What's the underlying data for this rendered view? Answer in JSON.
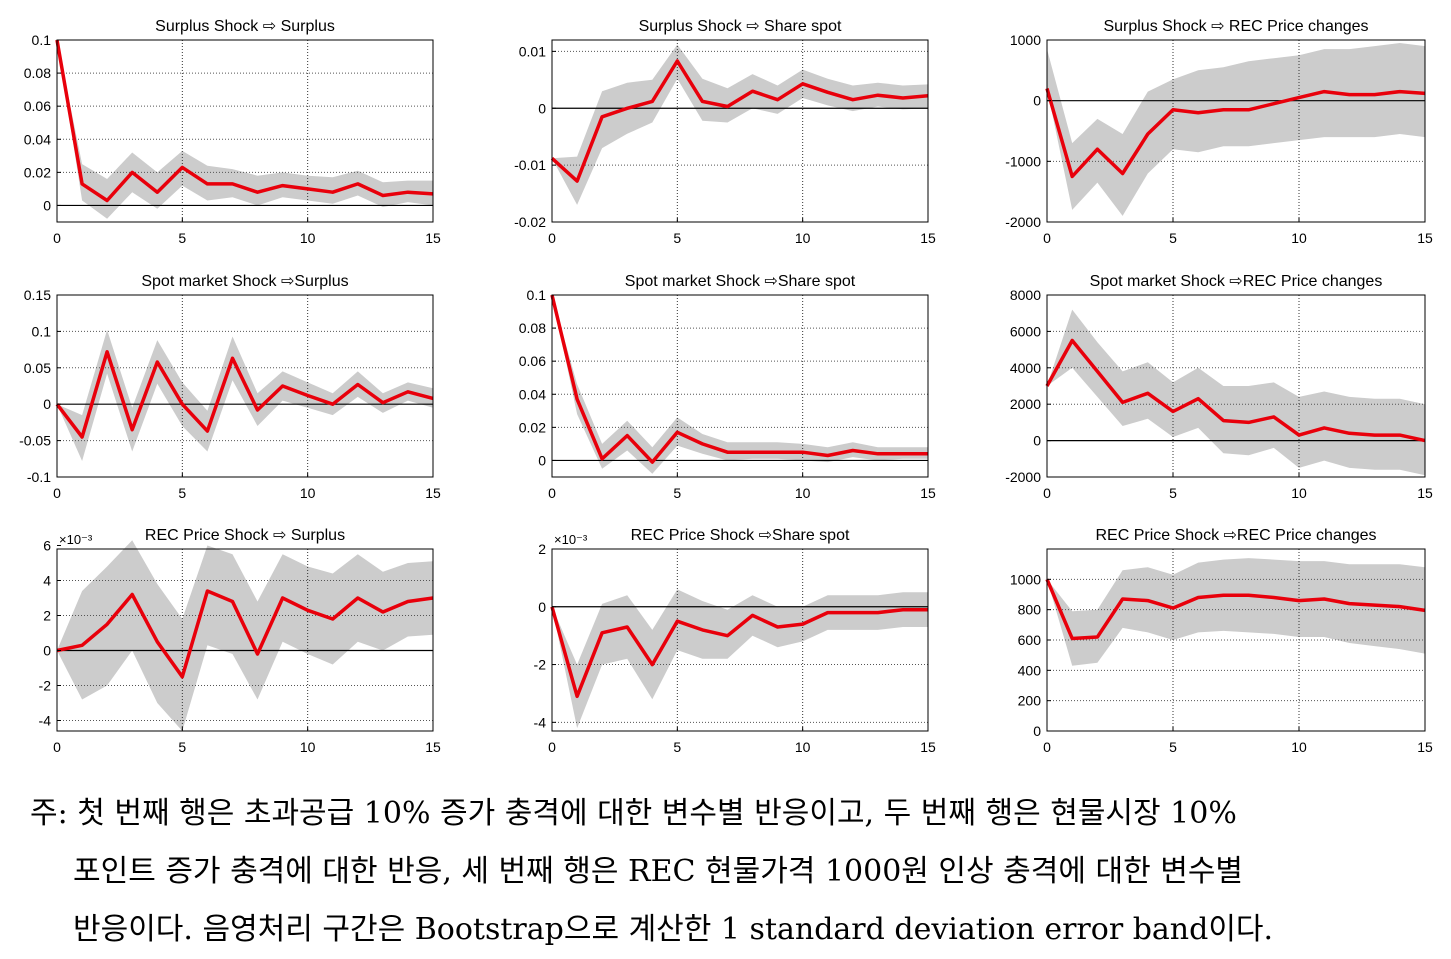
{
  "note": {
    "line1": "주: 첫 번째 행은 초과공급 10% 증가 충격에 대한 변수별 반응이고, 두 번째 행은 현물시장 10%",
    "line2": "포인트 증가 충격에 대한 반응, 세 번째 행은 REC 현물가격 1000원 인상 충격에 대한 변수별",
    "line3": "반응이다. 음영처리 구간은 Bootstrap으로 계산한 1 standard deviation error band이다."
  },
  "colors": {
    "response": "#e8000b",
    "band": "#cccccc"
  },
  "chart_data": [
    {
      "type": "line",
      "title": "Surplus Shock ⇨ Surplus",
      "xlim": [
        0,
        15
      ],
      "ylim": [
        -0.01,
        0.1
      ],
      "xticks": [
        0,
        5,
        10,
        15
      ],
      "yticks": [
        0,
        0.02,
        0.04,
        0.06,
        0.08,
        0.1
      ],
      "ytick_labels": [
        "0",
        "0.02",
        "0.04",
        "0.06",
        "0.08",
        "0.1"
      ],
      "yexp": "",
      "x": [
        0,
        1,
        2,
        3,
        4,
        5,
        6,
        7,
        8,
        9,
        10,
        11,
        12,
        13,
        14,
        15
      ],
      "values": [
        0.1,
        0.013,
        0.003,
        0.02,
        0.008,
        0.023,
        0.013,
        0.013,
        0.008,
        0.012,
        0.01,
        0.008,
        0.013,
        0.006,
        0.008,
        0.007
      ],
      "lower": [
        0.1,
        0.003,
        -0.008,
        0.008,
        -0.002,
        0.012,
        0.003,
        0.005,
        0.0,
        0.005,
        0.003,
        0.001,
        0.006,
        -0.001,
        0.002,
        0.0
      ],
      "upper": [
        0.1,
        0.025,
        0.016,
        0.032,
        0.02,
        0.033,
        0.024,
        0.022,
        0.018,
        0.02,
        0.018,
        0.017,
        0.021,
        0.014,
        0.015,
        0.015
      ]
    },
    {
      "type": "line",
      "title": "Surplus Shock ⇨ Share spot",
      "xlim": [
        0,
        15
      ],
      "ylim": [
        -0.02,
        0.012
      ],
      "xticks": [
        0,
        5,
        10,
        15
      ],
      "yticks": [
        -0.02,
        -0.01,
        0,
        0.01
      ],
      "ytick_labels": [
        "-0.02",
        "-0.01",
        "0",
        "0.01"
      ],
      "yexp": "",
      "x": [
        0,
        1,
        2,
        3,
        4,
        5,
        6,
        7,
        8,
        9,
        10,
        11,
        12,
        13,
        14,
        15
      ],
      "values": [
        -0.0088,
        -0.0128,
        -0.0015,
        0.0,
        0.0012,
        0.0083,
        0.0012,
        0.0003,
        0.003,
        0.0015,
        0.0043,
        0.0028,
        0.0015,
        0.0023,
        0.0018,
        0.0022
      ],
      "lower": [
        -0.0088,
        -0.017,
        -0.007,
        -0.0045,
        -0.0025,
        0.0052,
        -0.0022,
        -0.0025,
        0.0,
        -0.001,
        0.0018,
        0.0005,
        -0.0005,
        0.0003,
        -0.0002,
        0.0
      ],
      "upper": [
        -0.0088,
        -0.0085,
        0.003,
        0.0045,
        0.005,
        0.0112,
        0.0052,
        0.0035,
        0.006,
        0.004,
        0.0068,
        0.0052,
        0.004,
        0.0045,
        0.004,
        0.0042
      ]
    },
    {
      "type": "line",
      "title": "Surplus Shock ⇨ REC Price changes",
      "xlim": [
        0,
        15
      ],
      "ylim": [
        -2000,
        1000
      ],
      "xticks": [
        0,
        5,
        10,
        15
      ],
      "yticks": [
        -2000,
        -1000,
        0,
        1000
      ],
      "ytick_labels": [
        "-2000",
        "-1000",
        "0",
        "1000"
      ],
      "yexp": "",
      "x": [
        0,
        1,
        2,
        3,
        4,
        5,
        6,
        7,
        8,
        9,
        10,
        11,
        12,
        13,
        14,
        15
      ],
      "values": [
        200,
        -1250,
        -800,
        -1200,
        -550,
        -150,
        -200,
        -150,
        -150,
        -50,
        50,
        150,
        100,
        100,
        150,
        120
      ],
      "lower": [
        200,
        -1800,
        -1350,
        -1900,
        -1200,
        -800,
        -850,
        -750,
        -750,
        -700,
        -650,
        -600,
        -600,
        -600,
        -550,
        -600
      ],
      "upper": [
        850,
        -700,
        -300,
        -550,
        150,
        350,
        500,
        550,
        650,
        700,
        750,
        850,
        850,
        900,
        950,
        900
      ]
    },
    {
      "type": "line",
      "title": "Spot market Shock ⇨Surplus",
      "xlim": [
        0,
        15
      ],
      "ylim": [
        -0.1,
        0.15
      ],
      "xticks": [
        0,
        5,
        10,
        15
      ],
      "yticks": [
        -0.1,
        -0.05,
        0,
        0.05,
        0.1,
        0.15
      ],
      "ytick_labels": [
        "-0.1",
        "-0.05",
        "0",
        "0.05",
        "0.1",
        "0.15"
      ],
      "yexp": "",
      "x": [
        0,
        1,
        2,
        3,
        4,
        5,
        6,
        7,
        8,
        9,
        10,
        11,
        12,
        13,
        14,
        15
      ],
      "values": [
        0,
        -0.045,
        0.072,
        -0.035,
        0.058,
        0.0,
        -0.037,
        0.063,
        -0.008,
        0.025,
        0.012,
        0.0,
        0.027,
        0.002,
        0.017,
        0.008
      ],
      "lower": [
        0,
        -0.078,
        0.042,
        -0.065,
        0.028,
        -0.03,
        -0.065,
        0.033,
        -0.03,
        0.005,
        -0.005,
        -0.015,
        0.01,
        -0.012,
        0.005,
        -0.005
      ],
      "upper": [
        0,
        -0.015,
        0.102,
        -0.005,
        0.088,
        0.03,
        -0.009,
        0.093,
        0.015,
        0.045,
        0.03,
        0.015,
        0.045,
        0.015,
        0.03,
        0.022
      ]
    },
    {
      "type": "line",
      "title": "Spot market Shock ⇨Share spot",
      "xlim": [
        0,
        15
      ],
      "ylim": [
        -0.01,
        0.1
      ],
      "xticks": [
        0,
        5,
        10,
        15
      ],
      "yticks": [
        0,
        0.02,
        0.04,
        0.06,
        0.08,
        0.1
      ],
      "ytick_labels": [
        "0",
        "0.02",
        "0.04",
        "0.06",
        "0.08",
        "0.1"
      ],
      "yexp": "",
      "x": [
        0,
        1,
        2,
        3,
        4,
        5,
        6,
        7,
        8,
        9,
        10,
        11,
        12,
        13,
        14,
        15
      ],
      "values": [
        0.1,
        0.037,
        0.001,
        0.015,
        -0.001,
        0.017,
        0.01,
        0.005,
        0.005,
        0.005,
        0.005,
        0.003,
        0.006,
        0.004,
        0.004,
        0.004
      ],
      "lower": [
        0.1,
        0.028,
        -0.005,
        0.006,
        -0.008,
        0.009,
        0.004,
        0.0,
        0.001,
        0.001,
        0.0,
        -0.001,
        0.002,
        0.0,
        0.001,
        0.001
      ],
      "upper": [
        0.1,
        0.046,
        0.01,
        0.024,
        0.008,
        0.026,
        0.016,
        0.011,
        0.011,
        0.011,
        0.01,
        0.008,
        0.011,
        0.008,
        0.008,
        0.008
      ]
    },
    {
      "type": "line",
      "title": "Spot market Shock ⇨REC Price changes",
      "xlim": [
        0,
        15
      ],
      "ylim": [
        -2000,
        8000
      ],
      "xticks": [
        0,
        5,
        10,
        15
      ],
      "yticks": [
        -2000,
        0,
        2000,
        4000,
        6000,
        8000
      ],
      "ytick_labels": [
        "-2000",
        "0",
        "2000",
        "4000",
        "6000",
        "8000"
      ],
      "yexp": "",
      "x": [
        0,
        1,
        2,
        3,
        4,
        5,
        6,
        7,
        8,
        9,
        10,
        11,
        12,
        13,
        14,
        15
      ],
      "values": [
        3000,
        5500,
        3800,
        2100,
        2600,
        1600,
        2300,
        1100,
        1000,
        1300,
        300,
        700,
        400,
        300,
        300,
        0
      ],
      "lower": [
        3000,
        4000,
        2400,
        800,
        1200,
        200,
        700,
        -700,
        -800,
        -400,
        -1500,
        -1100,
        -1500,
        -1600,
        -1600,
        -1900
      ],
      "upper": [
        3000,
        7200,
        5400,
        3800,
        4300,
        3200,
        4000,
        3000,
        3000,
        3200,
        2400,
        2700,
        2400,
        2300,
        2300,
        2000
      ]
    },
    {
      "type": "line",
      "title": "REC Price Shock ⇨ Surplus",
      "xlim": [
        0,
        15
      ],
      "ylim": [
        -0.0046,
        0.0058
      ],
      "xticks": [
        0,
        5,
        10,
        15
      ],
      "yticks": [
        -0.004,
        -0.002,
        0,
        0.002,
        0.004,
        0.006
      ],
      "ytick_labels": [
        "-4",
        "-2",
        "0",
        "2",
        "4",
        "6"
      ],
      "yexp": "×10⁻³",
      "x": [
        0,
        1,
        2,
        3,
        4,
        5,
        6,
        7,
        8,
        9,
        10,
        11,
        12,
        13,
        14,
        15
      ],
      "values": [
        0,
        0.0003,
        0.0015,
        0.0032,
        0.0005,
        -0.0015,
        0.0034,
        0.0028,
        -0.0002,
        0.003,
        0.0023,
        0.0018,
        0.003,
        0.0022,
        0.0028,
        0.003
      ],
      "lower": [
        0,
        -0.0028,
        -0.002,
        0.0,
        -0.003,
        -0.0046,
        0.0003,
        -0.0002,
        -0.0028,
        0.0005,
        -0.0002,
        -0.0008,
        0.0005,
        0.0,
        0.0008,
        0.0009
      ],
      "upper": [
        0,
        0.0034,
        0.0048,
        0.0063,
        0.0038,
        0.0018,
        0.006,
        0.0055,
        0.0028,
        0.0055,
        0.0048,
        0.0044,
        0.0055,
        0.0045,
        0.005,
        0.0051
      ]
    },
    {
      "type": "line",
      "title": "REC Price Shock ⇨Share spot",
      "xlim": [
        0,
        15
      ],
      "ylim": [
        -0.0043,
        0.002
      ],
      "xticks": [
        0,
        5,
        10,
        15
      ],
      "yticks": [
        -0.004,
        -0.002,
        0,
        0.002
      ],
      "ytick_labels": [
        "-4",
        "-2",
        "0",
        "2"
      ],
      "yexp": "×10⁻³",
      "x": [
        0,
        1,
        2,
        3,
        4,
        5,
        6,
        7,
        8,
        9,
        10,
        11,
        12,
        13,
        14,
        15
      ],
      "values": [
        0,
        -0.0031,
        -0.0009,
        -0.0007,
        -0.002,
        -0.0005,
        -0.0008,
        -0.001,
        -0.0003,
        -0.0007,
        -0.0006,
        -0.0002,
        -0.0002,
        -0.0002,
        -0.0001,
        -0.0001
      ],
      "lower": [
        0,
        -0.0042,
        -0.002,
        -0.0018,
        -0.0032,
        -0.0015,
        -0.0018,
        -0.0018,
        -0.001,
        -0.0014,
        -0.0012,
        -0.0008,
        -0.0008,
        -0.0008,
        -0.0007,
        -0.0007
      ],
      "upper": [
        0,
        -0.002,
        0.0001,
        0.0004,
        -0.0008,
        0.0006,
        0.0002,
        -0.0001,
        0.0004,
        0.0,
        0.0,
        0.0004,
        0.0004,
        0.0004,
        0.0005,
        0.0005
      ]
    },
    {
      "type": "line",
      "title": "REC Price Shock ⇨REC Price changes",
      "xlim": [
        0,
        15
      ],
      "ylim": [
        0,
        1200
      ],
      "xticks": [
        0,
        5,
        10,
        15
      ],
      "yticks": [
        0,
        200,
        400,
        600,
        800,
        1000
      ],
      "ytick_labels": [
        "0",
        "200",
        "400",
        "600",
        "800",
        "1000"
      ],
      "yexp": "",
      "x": [
        0,
        1,
        2,
        3,
        4,
        5,
        6,
        7,
        8,
        9,
        10,
        11,
        12,
        13,
        14,
        15
      ],
      "values": [
        1000,
        610,
        620,
        870,
        860,
        810,
        880,
        895,
        895,
        880,
        860,
        870,
        840,
        830,
        820,
        795
      ],
      "lower": [
        1000,
        430,
        450,
        680,
        650,
        600,
        650,
        660,
        650,
        640,
        620,
        620,
        580,
        560,
        540,
        510
      ],
      "upper": [
        1000,
        790,
        800,
        1060,
        1080,
        1030,
        1110,
        1130,
        1140,
        1130,
        1120,
        1120,
        1100,
        1100,
        1100,
        1080
      ]
    }
  ]
}
